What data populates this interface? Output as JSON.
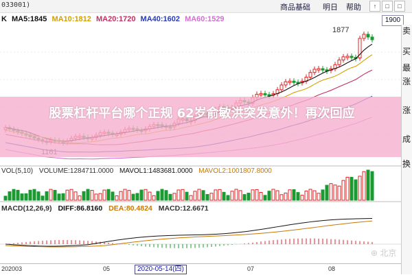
{
  "window": {
    "code": "033001)",
    "tabs": [
      "商品基础",
      "明日",
      "帮助"
    ],
    "buttons": [
      "↑",
      "□",
      "□"
    ]
  },
  "price_chart": {
    "k_label": "K",
    "ma": [
      {
        "label": "MA5:1845",
        "color": "#111111"
      },
      {
        "label": "MA10:1812",
        "color": "#d4a000"
      },
      {
        "label": "MA20:1720",
        "color": "#c03060"
      },
      {
        "label": "MA40:1602",
        "color": "#2a3ab0"
      },
      {
        "label": "MA60:1529",
        "color": "#d070d0"
      }
    ],
    "price_box": "1900",
    "high_label": "1877",
    "low_label": "1161",
    "candle_up": "#e02020",
    "candle_down": "#1a9a30"
  },
  "banner": {
    "text": "股票杠杆平台哪个正规 62岁俞敏洪突发意外！再次回应",
    "color": "#f6b0ce"
  },
  "sidebar": {
    "labels": [
      "卖",
      "买",
      "最",
      "涨",
      "涨",
      "成",
      "换"
    ]
  },
  "volume": {
    "labels": [
      {
        "text": "VOL(5,10)",
        "color": "#333333"
      },
      {
        "text": "VOLUME:1284711.0000",
        "color": "#333333"
      },
      {
        "text": "MAVOL1:1483681.0000",
        "color": "#111111"
      },
      {
        "text": "MAVOL2:1001807.8000",
        "color": "#c87800"
      }
    ]
  },
  "macd": {
    "labels": [
      {
        "text": "MACD(12,26,9)",
        "color": "#333333"
      },
      {
        "text": "DIFF:86.8160",
        "color": "#111111"
      },
      {
        "text": "DEA:80.4824",
        "color": "#c87800"
      },
      {
        "text": "MACD:12.6671",
        "color": "#333333"
      }
    ]
  },
  "xaxis": {
    "ticks": [
      "202003",
      "05",
      "07",
      "08"
    ],
    "cursor_date": "2020-05-14(四)"
  },
  "watermark": "⊕ 北京"
}
